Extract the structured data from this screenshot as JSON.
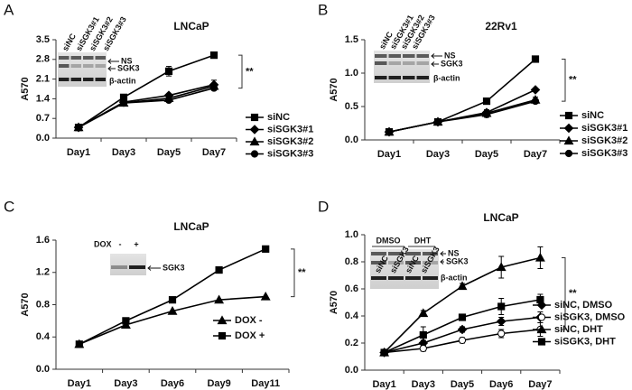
{
  "chart_data": [
    {
      "type": "line",
      "panel": "A",
      "title": "LNCaP",
      "y_label": "A570",
      "categories": [
        "Day1",
        "Day3",
        "Day5",
        "Day7"
      ],
      "ylim": [
        0,
        3.5
      ],
      "yticks": [
        {
          "value": 0,
          "label": "0.0"
        },
        0.7,
        1.4,
        2.1,
        2.8,
        3.5
      ],
      "annotation": "**",
      "series": [
        {
          "name": "siNC",
          "color": "#000000",
          "marker": "square",
          "values": [
            0.38,
            1.45,
            2.38,
            2.95
          ],
          "errors": [
            0.03,
            0.06,
            0.17,
            0.04
          ]
        },
        {
          "name": "siSGK3#1",
          "color": "#000000",
          "marker": "diamond",
          "values": [
            0.38,
            1.28,
            1.52,
            1.9
          ],
          "errors": [
            0.03,
            0.05,
            0.06,
            0.16
          ]
        },
        {
          "name": "siSGK3#2",
          "color": "#000000",
          "marker": "triangle",
          "values": [
            0.38,
            1.25,
            1.42,
            1.85
          ],
          "errors": [
            0.03,
            0.05,
            0.06,
            0.1
          ]
        },
        {
          "name": "siSGK3#3",
          "color": "#000000",
          "marker": "circle",
          "values": [
            0.38,
            1.25,
            1.35,
            1.78
          ],
          "errors": [
            0.03,
            0.05,
            0.06,
            0.08
          ]
        }
      ],
      "insert": {
        "lanes": [
          "siNC",
          "siSGK3#1",
          "siSGK3#2",
          "siSGK3#3"
        ],
        "bands": [
          "NS",
          "SGK3",
          "β-actin"
        ]
      }
    },
    {
      "type": "line",
      "panel": "B",
      "title": "22Rv1",
      "y_label": "A570",
      "categories": [
        "Day1",
        "Day3",
        "Day5",
        "Day7"
      ],
      "ylim": [
        0,
        1.5
      ],
      "yticks": [
        {
          "value": 0,
          "label": "0.0"
        },
        0.5,
        {
          "value": 1,
          "label": "1.0"
        },
        1.5
      ],
      "annotation": "**",
      "series": [
        {
          "name": "siNC",
          "color": "#000000",
          "marker": "square",
          "values": [
            0.12,
            0.27,
            0.58,
            1.21
          ],
          "errors": [
            0.01,
            0.02,
            0.02,
            0.02
          ]
        },
        {
          "name": "siSGK3#1",
          "color": "#000000",
          "marker": "diamond",
          "values": [
            0.12,
            0.27,
            0.41,
            0.75
          ],
          "errors": [
            0.01,
            0.02,
            0.04,
            0.02
          ]
        },
        {
          "name": "siSGK3#2",
          "color": "#000000",
          "marker": "triangle",
          "values": [
            0.12,
            0.27,
            0.4,
            0.6
          ],
          "errors": [
            0.01,
            0.02,
            0.05,
            0.04
          ]
        },
        {
          "name": "siSGK3#3",
          "color": "#000000",
          "marker": "circle",
          "values": [
            0.12,
            0.27,
            0.38,
            0.58
          ],
          "errors": [
            0.01,
            0.02,
            0.04,
            0.03
          ]
        }
      ],
      "insert": {
        "lanes": [
          "siNC",
          "siSGK3#1",
          "siSGK3#2",
          "siSGK3#3"
        ],
        "bands": [
          "NS",
          "SGK3",
          "β-actin"
        ]
      }
    },
    {
      "type": "line",
      "panel": "C",
      "title": "LNCaP",
      "y_label": "A570",
      "categories": [
        "Day1",
        "Day3",
        "Day6",
        "Day9",
        "Day11"
      ],
      "ylim": [
        0,
        1.6
      ],
      "yticks": [
        {
          "value": 0,
          "label": "0.0"
        },
        0.4,
        0.8,
        1.2,
        1.6
      ],
      "annotation": "**",
      "series": [
        {
          "name": "DOX -",
          "color": "#000000",
          "marker": "triangle",
          "values": [
            0.31,
            0.55,
            0.72,
            0.86,
            0.9
          ]
        },
        {
          "name": "DOX +",
          "color": "#000000",
          "marker": "square",
          "values": [
            0.31,
            0.6,
            0.86,
            1.23,
            1.49
          ]
        }
      ],
      "insert": {
        "label": "DOX",
        "lanes": [
          "-",
          "+"
        ],
        "bands": [
          "SGK3"
        ]
      }
    },
    {
      "type": "line",
      "panel": "D",
      "title": "LNCaP",
      "y_label": "A570",
      "categories": [
        "Day1",
        "Day3",
        "Day5",
        "Day6",
        "Day7"
      ],
      "ylim": [
        0,
        1
      ],
      "yticks": [
        {
          "value": 0,
          "label": "0.0"
        },
        0.2,
        0.4,
        0.6,
        0.8,
        {
          "value": 1,
          "label": "1.0"
        }
      ],
      "annotation": "**",
      "series": [
        {
          "name": "siNC, DMSO",
          "color": "#000000",
          "marker": "diamond",
          "values": [
            0.13,
            0.2,
            0.3,
            0.36,
            0.39
          ],
          "errors": [
            0.01,
            0.02,
            0.02,
            0.03,
            0.04
          ]
        },
        {
          "name": "siSGK3, DMSO",
          "color": "#000000",
          "marker": "circle-open",
          "values": [
            0.13,
            0.16,
            0.22,
            0.27,
            0.3
          ],
          "errors": [
            0.01,
            0.02,
            0.02,
            0.03,
            0.05
          ]
        },
        {
          "name": "siNC, DHT",
          "color": "#000000",
          "marker": "triangle",
          "values": [
            0.13,
            0.42,
            0.62,
            0.76,
            0.83
          ],
          "errors": [
            0.01,
            0.02,
            0.02,
            0.08,
            0.08
          ]
        },
        {
          "name": "siSGK3, DHT",
          "color": "#000000",
          "marker": "square",
          "values": [
            0.13,
            0.26,
            0.39,
            0.47,
            0.52
          ],
          "errors": [
            0.01,
            0.06,
            0.02,
            0.06,
            0.04
          ]
        }
      ],
      "insert": {
        "groups": [
          "DMSO",
          "DHT"
        ],
        "lanes": [
          "siNC",
          "siSGK3",
          "siNC",
          "siSGK3"
        ],
        "bands": [
          "NS",
          "SGK3",
          "β-actin"
        ]
      }
    }
  ]
}
